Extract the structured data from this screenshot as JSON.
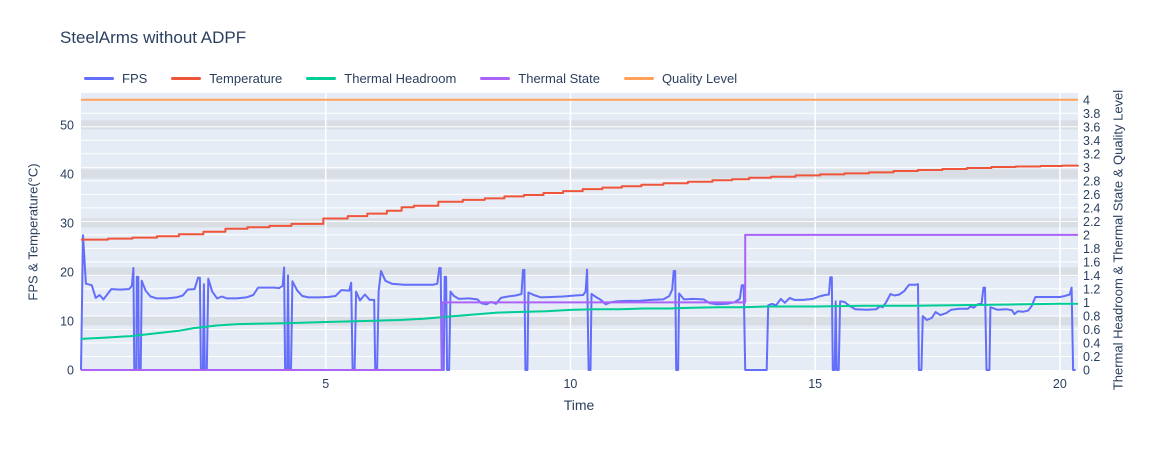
{
  "title": "SteelArms without ADPF",
  "chart_data": {
    "type": "line",
    "title": "SteelArms without ADPF",
    "xlabel": "Time",
    "ylabel_left": "FPS & Temperature(°C)",
    "ylabel_right": "Thermal Headroom & Thermal State & Quality Level",
    "x_range": [
      0,
      20.37
    ],
    "x_ticks": [
      5,
      10,
      15,
      20
    ],
    "y_left_range": [
      0,
      56.5
    ],
    "y_left_ticks": [
      0,
      10,
      20,
      30,
      40,
      50
    ],
    "y_right_range": [
      0,
      4.1
    ],
    "y_right_ticks": [
      0,
      0.2,
      0.4,
      0.6,
      0.8,
      1,
      1.2,
      1.4,
      1.6,
      1.8,
      2,
      2.2,
      2.4,
      2.6,
      2.8,
      3,
      3.2,
      3.4,
      3.6,
      3.8,
      4
    ],
    "grid": true,
    "legend_position": "top-left",
    "colors": {
      "plot_background": "#E5ECF6",
      "grid_line": "#FFFFFF",
      "left_grid_band": "#D9DDE4",
      "text": "#2A3F5F"
    },
    "series": [
      {
        "name": "FPS",
        "color": "#636EFA",
        "axis": "left",
        "step": false,
        "points": [
          [
            0,
            0
          ],
          [
            0.04,
            27.5
          ],
          [
            0.1,
            17.6
          ],
          [
            0.22,
            17.3
          ],
          [
            0.3,
            14.7
          ],
          [
            0.38,
            15.3
          ],
          [
            0.46,
            14.4
          ],
          [
            0.55,
            15.6
          ],
          [
            0.62,
            16.5
          ],
          [
            0.8,
            16.4
          ],
          [
            0.98,
            16.5
          ],
          [
            1.04,
            17.2
          ],
          [
            1.07,
            20.8
          ],
          [
            1.09,
            0
          ],
          [
            1.13,
            0
          ],
          [
            1.14,
            19
          ],
          [
            1.17,
            19
          ],
          [
            1.18,
            0
          ],
          [
            1.22,
            0
          ],
          [
            1.24,
            18.2
          ],
          [
            1.32,
            16.2
          ],
          [
            1.42,
            15
          ],
          [
            1.55,
            14.6
          ],
          [
            1.75,
            14.6
          ],
          [
            1.95,
            14.8
          ],
          [
            2.08,
            15.2
          ],
          [
            2.18,
            16.4
          ],
          [
            2.32,
            16.5
          ],
          [
            2.39,
            18.8
          ],
          [
            2.43,
            18.8
          ],
          [
            2.45,
            0
          ],
          [
            2.49,
            0
          ],
          [
            2.51,
            17.5
          ],
          [
            2.53,
            0
          ],
          [
            2.57,
            0
          ],
          [
            2.6,
            18.6
          ],
          [
            2.68,
            16
          ],
          [
            2.78,
            14.6
          ],
          [
            2.88,
            15
          ],
          [
            2.98,
            14.6
          ],
          [
            3.18,
            14.6
          ],
          [
            3.38,
            14.8
          ],
          [
            3.52,
            15.3
          ],
          [
            3.62,
            16.8
          ],
          [
            3.95,
            16.8
          ],
          [
            4.05,
            16.7
          ],
          [
            4.12,
            17.2
          ],
          [
            4.15,
            20.9
          ],
          [
            4.17,
            0
          ],
          [
            4.21,
            0
          ],
          [
            4.23,
            19.3
          ],
          [
            4.25,
            0
          ],
          [
            4.29,
            0
          ],
          [
            4.32,
            18.1
          ],
          [
            4.42,
            16.2
          ],
          [
            4.52,
            15.1
          ],
          [
            4.65,
            14.8
          ],
          [
            4.85,
            14.8
          ],
          [
            5.05,
            14.9
          ],
          [
            5.2,
            15.1
          ],
          [
            5.32,
            16.3
          ],
          [
            5.48,
            16.2
          ],
          [
            5.52,
            17.8
          ],
          [
            5.55,
            0
          ],
          [
            5.59,
            0
          ],
          [
            5.62,
            16
          ],
          [
            5.7,
            14.2
          ],
          [
            5.8,
            15.4
          ],
          [
            5.9,
            14.3
          ],
          [
            5.99,
            14.3
          ],
          [
            6.01,
            0
          ],
          [
            6.05,
            0
          ],
          [
            6.08,
            16
          ],
          [
            6.13,
            20.2
          ],
          [
            6.22,
            18.2
          ],
          [
            6.35,
            17.6
          ],
          [
            6.6,
            17.4
          ],
          [
            6.9,
            17.4
          ],
          [
            7.2,
            17.4
          ],
          [
            7.28,
            17.6
          ],
          [
            7.32,
            20.8
          ],
          [
            7.35,
            20.8
          ],
          [
            7.37,
            0
          ],
          [
            7.41,
            0
          ],
          [
            7.43,
            19
          ],
          [
            7.46,
            19
          ],
          [
            7.48,
            0
          ],
          [
            7.52,
            0
          ],
          [
            7.55,
            16
          ],
          [
            7.62,
            15.1
          ],
          [
            7.72,
            14.5
          ],
          [
            7.92,
            14.6
          ],
          [
            8.1,
            14.4
          ],
          [
            8.18,
            13.6
          ],
          [
            8.28,
            13.4
          ],
          [
            8.38,
            13.9
          ],
          [
            8.48,
            13.5
          ],
          [
            8.58,
            14.7
          ],
          [
            8.72,
            15
          ],
          [
            8.88,
            15.2
          ],
          [
            9,
            15.5
          ],
          [
            9.03,
            20.4
          ],
          [
            9.06,
            20.4
          ],
          [
            9.08,
            0
          ],
          [
            9.12,
            0
          ],
          [
            9.14,
            15.8
          ],
          [
            9.25,
            15.3
          ],
          [
            9.4,
            14.8
          ],
          [
            9.6,
            14.9
          ],
          [
            9.85,
            15
          ],
          [
            10.1,
            15.2
          ],
          [
            10.26,
            15.3
          ],
          [
            10.31,
            16
          ],
          [
            10.34,
            20.5
          ],
          [
            10.37,
            0
          ],
          [
            10.41,
            0
          ],
          [
            10.43,
            15.5
          ],
          [
            10.52,
            14.9
          ],
          [
            10.62,
            14.3
          ],
          [
            10.72,
            13.4
          ],
          [
            10.82,
            13.8
          ],
          [
            10.95,
            14
          ],
          [
            11.15,
            14.1
          ],
          [
            11.4,
            14.1
          ],
          [
            11.65,
            14.3
          ],
          [
            11.9,
            14.4
          ],
          [
            12.02,
            15.1
          ],
          [
            12.08,
            16.4
          ],
          [
            12.11,
            20.2
          ],
          [
            12.14,
            20.2
          ],
          [
            12.16,
            0
          ],
          [
            12.2,
            0
          ],
          [
            12.22,
            15.6
          ],
          [
            12.32,
            14.4
          ],
          [
            12.5,
            14.5
          ],
          [
            12.72,
            14.4
          ],
          [
            12.85,
            13.6
          ],
          [
            13,
            13.4
          ],
          [
            13.2,
            13.5
          ],
          [
            13.35,
            13.8
          ],
          [
            13.46,
            14.5
          ],
          [
            13.5,
            17.3
          ],
          [
            13.54,
            17.3
          ],
          [
            13.57,
            0
          ],
          [
            14.01,
            0
          ],
          [
            14.04,
            13.2
          ],
          [
            14.12,
            13.5
          ],
          [
            14.2,
            13.2
          ],
          [
            14.3,
            14.5
          ],
          [
            14.38,
            13.7
          ],
          [
            14.48,
            14.7
          ],
          [
            14.58,
            14.3
          ],
          [
            14.75,
            14.3
          ],
          [
            14.95,
            14.5
          ],
          [
            15.08,
            15
          ],
          [
            15.2,
            15.3
          ],
          [
            15.28,
            15.4
          ],
          [
            15.31,
            18.9
          ],
          [
            15.34,
            18.9
          ],
          [
            15.36,
            0
          ],
          [
            15.4,
            0
          ],
          [
            15.42,
            14
          ],
          [
            15.44,
            0
          ],
          [
            15.48,
            0
          ],
          [
            15.51,
            14
          ],
          [
            15.6,
            13.9
          ],
          [
            15.7,
            13.1
          ],
          [
            15.82,
            12.4
          ],
          [
            16.05,
            12.3
          ],
          [
            16.25,
            12.4
          ],
          [
            16.32,
            13
          ],
          [
            16.38,
            12.8
          ],
          [
            16.46,
            14
          ],
          [
            16.54,
            15.5
          ],
          [
            16.62,
            15.2
          ],
          [
            16.72,
            15.4
          ],
          [
            16.82,
            16.1
          ],
          [
            16.92,
            17.4
          ],
          [
            17.06,
            17.4
          ],
          [
            17.1,
            17.5
          ],
          [
            17.12,
            0
          ],
          [
            17.17,
            0
          ],
          [
            17.2,
            11
          ],
          [
            17.28,
            10.2
          ],
          [
            17.38,
            10.6
          ],
          [
            17.46,
            11.8
          ],
          [
            17.56,
            11.2
          ],
          [
            17.68,
            11.6
          ],
          [
            17.78,
            12.3
          ],
          [
            17.95,
            12.5
          ],
          [
            18.12,
            12.5
          ],
          [
            18.18,
            13
          ],
          [
            18.24,
            12.7
          ],
          [
            18.32,
            13.4
          ],
          [
            18.4,
            13.6
          ],
          [
            18.44,
            16.8
          ],
          [
            18.47,
            16.8
          ],
          [
            18.5,
            0
          ],
          [
            18.56,
            0
          ],
          [
            18.58,
            12.8
          ],
          [
            18.72,
            12.3
          ],
          [
            18.9,
            12.4
          ],
          [
            19.02,
            12.2
          ],
          [
            19.07,
            11.4
          ],
          [
            19.14,
            12
          ],
          [
            19.25,
            11.9
          ],
          [
            19.35,
            12.1
          ],
          [
            19.42,
            13
          ],
          [
            19.5,
            14.9
          ],
          [
            19.75,
            14.9
          ],
          [
            20,
            14.9
          ],
          [
            20.1,
            15.1
          ],
          [
            20.2,
            15.4
          ],
          [
            20.24,
            16.8
          ],
          [
            20.27,
            0
          ],
          [
            20.32,
            0
          ]
        ]
      },
      {
        "name": "Temperature",
        "color": "#EF553B",
        "axis": "left",
        "step": true,
        "points": [
          [
            0,
            26.6
          ],
          [
            0.55,
            26.8
          ],
          [
            1.05,
            27.0
          ],
          [
            1.55,
            27.3
          ],
          [
            2.0,
            27.7
          ],
          [
            2.5,
            28.2
          ],
          [
            2.95,
            28.8
          ],
          [
            3.4,
            29.1
          ],
          [
            3.85,
            29.4
          ],
          [
            4.3,
            29.8
          ],
          [
            4.95,
            30.9
          ],
          [
            5.45,
            31.4
          ],
          [
            5.85,
            31.9
          ],
          [
            6.25,
            32.5
          ],
          [
            6.55,
            33.2
          ],
          [
            6.8,
            33.5
          ],
          [
            7.3,
            34.3
          ],
          [
            7.8,
            34.7
          ],
          [
            8.25,
            35.0
          ],
          [
            8.65,
            35.4
          ],
          [
            9.05,
            35.7
          ],
          [
            9.45,
            36.1
          ],
          [
            9.85,
            36.5
          ],
          [
            10.25,
            36.9
          ],
          [
            10.65,
            37.2
          ],
          [
            11.05,
            37.5
          ],
          [
            11.45,
            37.8
          ],
          [
            11.9,
            38.1
          ],
          [
            12.4,
            38.4
          ],
          [
            12.9,
            38.7
          ],
          [
            13.3,
            38.9
          ],
          [
            13.65,
            39.2
          ],
          [
            14.1,
            39.4
          ],
          [
            14.6,
            39.7
          ],
          [
            15.1,
            39.9
          ],
          [
            15.6,
            40.1
          ],
          [
            16.1,
            40.3
          ],
          [
            16.6,
            40.6
          ],
          [
            17.1,
            40.8
          ],
          [
            17.6,
            41.0
          ],
          [
            18.1,
            41.2
          ],
          [
            18.6,
            41.4
          ],
          [
            19.1,
            41.5
          ],
          [
            19.6,
            41.6
          ],
          [
            20.05,
            41.7
          ],
          [
            20.37,
            41.8
          ]
        ]
      },
      {
        "name": "Thermal Headroom",
        "color": "#00CC96",
        "axis": "right",
        "step": false,
        "points": [
          [
            0,
            0.46
          ],
          [
            0.5,
            0.48
          ],
          [
            1,
            0.5
          ],
          [
            1.5,
            0.54
          ],
          [
            2,
            0.58
          ],
          [
            2.3,
            0.62
          ],
          [
            2.8,
            0.66
          ],
          [
            3.2,
            0.68
          ],
          [
            4,
            0.69
          ],
          [
            4.5,
            0.7
          ],
          [
            5,
            0.71
          ],
          [
            5.5,
            0.72
          ],
          [
            6,
            0.73
          ],
          [
            6.5,
            0.74
          ],
          [
            7,
            0.76
          ],
          [
            7.5,
            0.79
          ],
          [
            8,
            0.82
          ],
          [
            8.5,
            0.85
          ],
          [
            9,
            0.86
          ],
          [
            9.5,
            0.87
          ],
          [
            10,
            0.89
          ],
          [
            10.5,
            0.9
          ],
          [
            11,
            0.9
          ],
          [
            11.5,
            0.91
          ],
          [
            12,
            0.91
          ],
          [
            12.5,
            0.92
          ],
          [
            13,
            0.93
          ],
          [
            13.5,
            0.93
          ],
          [
            14,
            0.94
          ],
          [
            15,
            0.94
          ],
          [
            16,
            0.95
          ],
          [
            17,
            0.95
          ],
          [
            18,
            0.96
          ],
          [
            19,
            0.97
          ],
          [
            20,
            0.98
          ],
          [
            20.37,
            0.98
          ]
        ]
      },
      {
        "name": "Thermal State",
        "color": "#AB63FA",
        "axis": "right",
        "step": true,
        "points": [
          [
            0,
            0
          ],
          [
            7.38,
            1
          ],
          [
            13.57,
            2
          ],
          [
            20.37,
            2
          ]
        ]
      },
      {
        "name": "Quality Level",
        "color": "#FFA15A",
        "axis": "right",
        "step": true,
        "points": [
          [
            0,
            4
          ],
          [
            20.37,
            4
          ]
        ]
      }
    ]
  }
}
